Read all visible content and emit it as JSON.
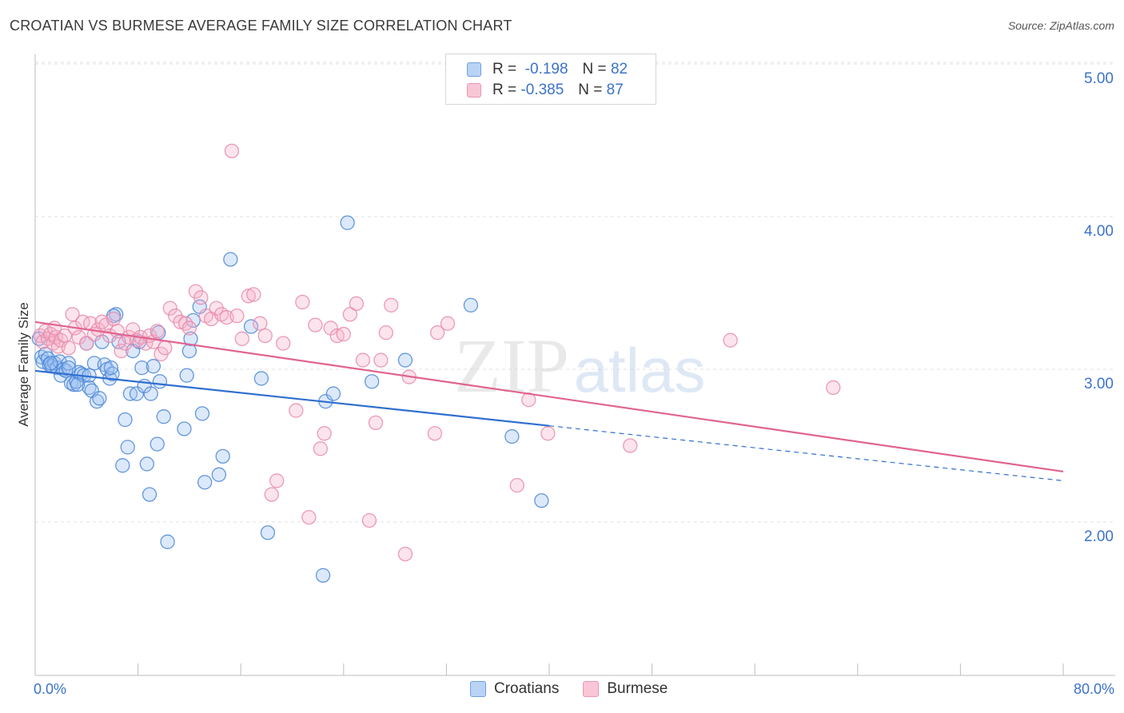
{
  "header": {
    "title": "CROATIAN VS BURMESE AVERAGE FAMILY SIZE CORRELATION CHART",
    "source": "Source: ZipAtlas.com"
  },
  "legend": {
    "r_label": "R =",
    "n_label": "N =",
    "croatians": {
      "r": "-0.198",
      "n": "82"
    },
    "burmese": {
      "r": "-0.385",
      "n": "87"
    }
  },
  "bottom_legend": {
    "croatians": "Croatians",
    "burmese": "Burmese"
  },
  "axes": {
    "x_min_label": "0.0%",
    "x_max_label": "80.0%",
    "ylabel": "Average Family Size"
  },
  "watermark": {
    "zip": "ZIP",
    "atlas": "atlas"
  },
  "colors": {
    "blue": "#4a86d8",
    "pink": "#e66f9a",
    "blue_line": "#2f6fd0",
    "pink_line": "#e0648f",
    "tick_text": "#3b73c9"
  },
  "chart_data": {
    "type": "scatter",
    "title": "CROATIAN VS BURMESE AVERAGE FAMILY SIZE CORRELATION CHART",
    "xlabel": "",
    "ylabel": "Average Family Size",
    "xlim": [
      0,
      80
    ],
    "ylim": [
      1.0,
      5.1
    ],
    "yticks": [
      2.0,
      3.0,
      4.0,
      5.0
    ],
    "ytick_labels": [
      "2.00",
      "3.00",
      "4.00",
      "5.00"
    ],
    "grid": true,
    "series": [
      {
        "name": "Croatians",
        "r": -0.198,
        "n": 82,
        "trend": {
          "x0": 0,
          "y0": 2.99,
          "x1": 40,
          "y1": 2.63,
          "dashed_to_x": 80,
          "dashed_to_y": 2.27
        },
        "points": [
          [
            0.3,
            3.2
          ],
          [
            0.5,
            3.08
          ],
          [
            0.6,
            3.05
          ],
          [
            0.8,
            3.1
          ],
          [
            1.0,
            3.07
          ],
          [
            1.1,
            3.03
          ],
          [
            1.3,
            3.02
          ],
          [
            1.5,
            3.04
          ],
          [
            1.7,
            3.01
          ],
          [
            1.9,
            3.05
          ],
          [
            2.0,
            2.96
          ],
          [
            2.2,
            3.0
          ],
          [
            2.4,
            2.99
          ],
          [
            2.6,
            3.04
          ],
          [
            2.8,
            2.91
          ],
          [
            3.0,
            2.9
          ],
          [
            3.2,
            2.92
          ],
          [
            3.4,
            2.98
          ],
          [
            3.6,
            2.97
          ],
          [
            3.8,
            2.96
          ],
          [
            4.0,
            3.17
          ],
          [
            4.2,
            2.88
          ],
          [
            4.4,
            2.86
          ],
          [
            4.6,
            3.04
          ],
          [
            4.8,
            2.79
          ],
          [
            5.0,
            2.81
          ],
          [
            5.2,
            3.18
          ],
          [
            5.4,
            3.03
          ],
          [
            5.6,
            3.0
          ],
          [
            5.8,
            2.94
          ],
          [
            6.0,
            2.97
          ],
          [
            6.3,
            3.36
          ],
          [
            6.5,
            3.18
          ],
          [
            6.8,
            2.37
          ],
          [
            7.0,
            2.67
          ],
          [
            7.2,
            2.49
          ],
          [
            7.4,
            2.84
          ],
          [
            7.6,
            3.12
          ],
          [
            7.9,
            2.84
          ],
          [
            8.1,
            3.18
          ],
          [
            8.3,
            3.01
          ],
          [
            8.5,
            2.89
          ],
          [
            8.7,
            2.38
          ],
          [
            8.9,
            2.18
          ],
          [
            9.0,
            2.84
          ],
          [
            9.2,
            3.02
          ],
          [
            9.5,
            2.51
          ],
          [
            9.7,
            2.92
          ],
          [
            10.0,
            2.69
          ],
          [
            10.3,
            1.87
          ],
          [
            11.6,
            2.61
          ],
          [
            11.8,
            2.96
          ],
          [
            12.0,
            3.12
          ],
          [
            12.3,
            3.32
          ],
          [
            12.8,
            3.41
          ],
          [
            13.0,
            2.71
          ],
          [
            13.2,
            2.26
          ],
          [
            14.3,
            2.31
          ],
          [
            14.6,
            2.43
          ],
          [
            15.2,
            3.72
          ],
          [
            16.8,
            3.28
          ],
          [
            17.6,
            2.94
          ],
          [
            18.1,
            1.93
          ],
          [
            22.4,
            1.65
          ],
          [
            22.6,
            2.79
          ],
          [
            23.2,
            2.84
          ],
          [
            24.3,
            3.96
          ],
          [
            26.2,
            2.92
          ],
          [
            28.8,
            3.06
          ],
          [
            37.1,
            2.56
          ],
          [
            33.9,
            3.42
          ],
          [
            39.4,
            2.14
          ],
          [
            3.3,
            2.9
          ],
          [
            4.2,
            2.96
          ],
          [
            6.1,
            3.35
          ],
          [
            1.2,
            3.04
          ],
          [
            2.6,
            3.01
          ],
          [
            5.9,
            3.01
          ],
          [
            9.6,
            3.24
          ],
          [
            12.1,
            3.2
          ]
        ]
      },
      {
        "name": "Burmese",
        "r": -0.385,
        "n": 87,
        "trend": {
          "x0": 0,
          "y0": 3.31,
          "x1": 80,
          "y1": 2.33
        },
        "points": [
          [
            0.4,
            3.22
          ],
          [
            0.6,
            3.18
          ],
          [
            0.8,
            3.25
          ],
          [
            1.0,
            3.2
          ],
          [
            1.2,
            3.23
          ],
          [
            1.4,
            3.17
          ],
          [
            1.6,
            3.21
          ],
          [
            1.8,
            3.15
          ],
          [
            2.0,
            3.19
          ],
          [
            2.3,
            3.22
          ],
          [
            2.6,
            3.14
          ],
          [
            2.9,
            3.36
          ],
          [
            3.1,
            3.27
          ],
          [
            3.4,
            3.21
          ],
          [
            3.7,
            3.31
          ],
          [
            4.0,
            3.17
          ],
          [
            4.3,
            3.3
          ],
          [
            4.6,
            3.23
          ],
          [
            4.9,
            3.26
          ],
          [
            5.2,
            3.31
          ],
          [
            5.5,
            3.29
          ],
          [
            5.8,
            3.22
          ],
          [
            6.1,
            3.33
          ],
          [
            6.4,
            3.25
          ],
          [
            6.7,
            3.12
          ],
          [
            7.0,
            3.17
          ],
          [
            7.3,
            3.21
          ],
          [
            7.6,
            3.26
          ],
          [
            7.9,
            3.19
          ],
          [
            8.2,
            3.21
          ],
          [
            8.6,
            3.17
          ],
          [
            8.9,
            3.22
          ],
          [
            9.2,
            3.18
          ],
          [
            9.5,
            3.25
          ],
          [
            9.8,
            3.1
          ],
          [
            10.1,
            3.14
          ],
          [
            10.5,
            3.4
          ],
          [
            10.9,
            3.35
          ],
          [
            11.3,
            3.31
          ],
          [
            11.7,
            3.3
          ],
          [
            12.0,
            3.27
          ],
          [
            12.5,
            3.51
          ],
          [
            12.9,
            3.47
          ],
          [
            13.3,
            3.35
          ],
          [
            13.7,
            3.33
          ],
          [
            14.1,
            3.4
          ],
          [
            14.5,
            3.36
          ],
          [
            14.9,
            3.34
          ],
          [
            15.3,
            4.43
          ],
          [
            15.7,
            3.35
          ],
          [
            16.1,
            3.2
          ],
          [
            16.6,
            3.48
          ],
          [
            17.0,
            3.49
          ],
          [
            17.5,
            3.3
          ],
          [
            17.9,
            3.22
          ],
          [
            18.4,
            2.18
          ],
          [
            18.8,
            2.27
          ],
          [
            19.3,
            3.17
          ],
          [
            20.3,
            2.73
          ],
          [
            20.8,
            3.44
          ],
          [
            21.3,
            2.03
          ],
          [
            21.8,
            3.29
          ],
          [
            22.2,
            2.48
          ],
          [
            22.5,
            2.58
          ],
          [
            23.0,
            3.27
          ],
          [
            23.5,
            3.22
          ],
          [
            24.0,
            3.23
          ],
          [
            24.5,
            3.36
          ],
          [
            25.0,
            3.43
          ],
          [
            25.5,
            3.06
          ],
          [
            26.0,
            2.01
          ],
          [
            26.5,
            2.65
          ],
          [
            26.9,
            3.06
          ],
          [
            27.3,
            3.24
          ],
          [
            27.7,
            3.42
          ],
          [
            28.8,
            1.79
          ],
          [
            29.1,
            2.95
          ],
          [
            31.1,
            2.58
          ],
          [
            31.3,
            3.24
          ],
          [
            32.1,
            3.3
          ],
          [
            37.5,
            2.24
          ],
          [
            38.4,
            2.8
          ],
          [
            39.9,
            2.58
          ],
          [
            46.3,
            2.5
          ],
          [
            54.1,
            3.19
          ],
          [
            62.1,
            2.88
          ],
          [
            1.5,
            3.27
          ]
        ]
      }
    ]
  }
}
